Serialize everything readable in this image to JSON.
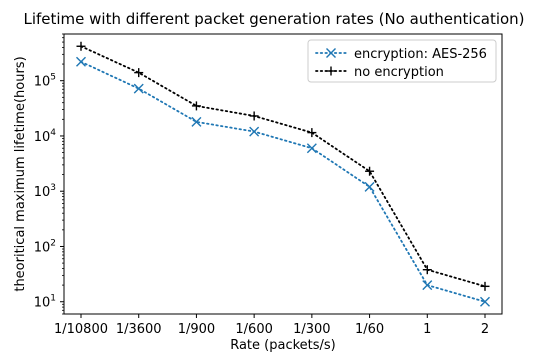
{
  "chart_data": {
    "type": "line",
    "title": "Lifetime with different packet generation rates (No authentication)",
    "xlabel": "Rate (packets/s)",
    "ylabel": "theoritical maximum lifetime(hours)",
    "categories": [
      "1/10800",
      "1/3600",
      "1/900",
      "1/600",
      "1/300",
      "1/60",
      "1",
      "2"
    ],
    "y_scale": "log",
    "ylim": [
      6,
      700000
    ],
    "y_ticks": [
      {
        "value": 10,
        "base": "10",
        "exp": "1"
      },
      {
        "value": 100,
        "base": "10",
        "exp": "2"
      },
      {
        "value": 1000,
        "base": "10",
        "exp": "3"
      },
      {
        "value": 10000,
        "base": "10",
        "exp": "4"
      },
      {
        "value": 100000,
        "base": "10",
        "exp": "5"
      }
    ],
    "grid": false,
    "legend_position": "top-right",
    "series": [
      {
        "name": "encryption: AES-256",
        "marker": "x",
        "color": "#1f77b4",
        "values": [
          220000,
          72000,
          18000,
          12000,
          6000,
          1200,
          20,
          10
        ]
      },
      {
        "name": "no encryption",
        "marker": "+",
        "color": "#000000",
        "values": [
          420000,
          140000,
          35000,
          23000,
          11500,
          2300,
          38,
          19
        ]
      }
    ]
  }
}
